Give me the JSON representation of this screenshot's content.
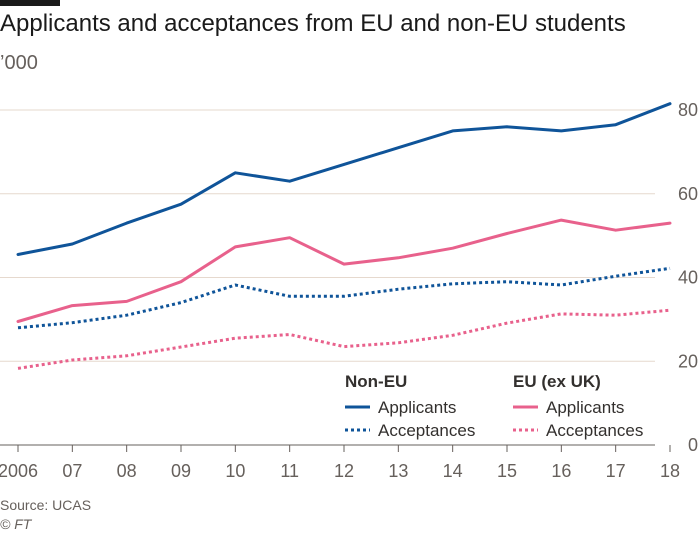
{
  "header": {
    "title": "Applicants and acceptances from EU and non-EU students",
    "unit": "’000"
  },
  "footer": {
    "source": "Source: UCAS",
    "credit": "© FT"
  },
  "colors": {
    "non_eu": "#0f5499",
    "eu": "#e8618c",
    "grid": "#e6d9ce",
    "axis": "#66605c"
  },
  "legend": {
    "groups": [
      {
        "heading": "Non-EU",
        "items": [
          "Applicants",
          "Acceptances"
        ]
      },
      {
        "heading": "EU (ex UK)",
        "items": [
          "Applicants",
          "Acceptances"
        ]
      }
    ],
    "placement": "bottom-right"
  },
  "chart_data": {
    "type": "line",
    "x_tick_labels": [
      "2006",
      "07",
      "08",
      "09",
      "10",
      "11",
      "12",
      "13",
      "14",
      "15",
      "16",
      "17",
      "18"
    ],
    "x": [
      2006,
      2007,
      2008,
      2009,
      2010,
      2011,
      2012,
      2013,
      2014,
      2015,
      2016,
      2017,
      2018
    ],
    "y_ticks": [
      0,
      20,
      40,
      60,
      80
    ],
    "ylim": [
      0,
      80
    ],
    "grid": true,
    "series": [
      {
        "group": "Non-EU",
        "name": "Applicants",
        "style": "solid",
        "color": "#0f5499",
        "values": [
          45.5,
          48,
          53,
          57.5,
          65,
          63,
          67,
          71,
          75,
          76,
          75,
          76.5,
          81.5
        ]
      },
      {
        "group": "Non-EU",
        "name": "Acceptances",
        "style": "dotted",
        "color": "#0f5499",
        "values": [
          28,
          29.2,
          31,
          34,
          38.2,
          35.5,
          35.5,
          37.2,
          38.5,
          39,
          38.2,
          40.3,
          42.2
        ]
      },
      {
        "group": "EU (ex UK)",
        "name": "Applicants",
        "style": "solid",
        "color": "#e8618c",
        "values": [
          29.5,
          33.3,
          34.3,
          39,
          47.3,
          49.5,
          43.2,
          44.7,
          47,
          50.5,
          53.7,
          51.3,
          53
        ]
      },
      {
        "group": "EU (ex UK)",
        "name": "Acceptances",
        "style": "dotted",
        "color": "#e8618c",
        "values": [
          18.3,
          20.3,
          21.3,
          23.4,
          25.5,
          26.4,
          23.5,
          24.4,
          26.2,
          29.1,
          31.3,
          31,
          32.2
        ]
      }
    ]
  }
}
